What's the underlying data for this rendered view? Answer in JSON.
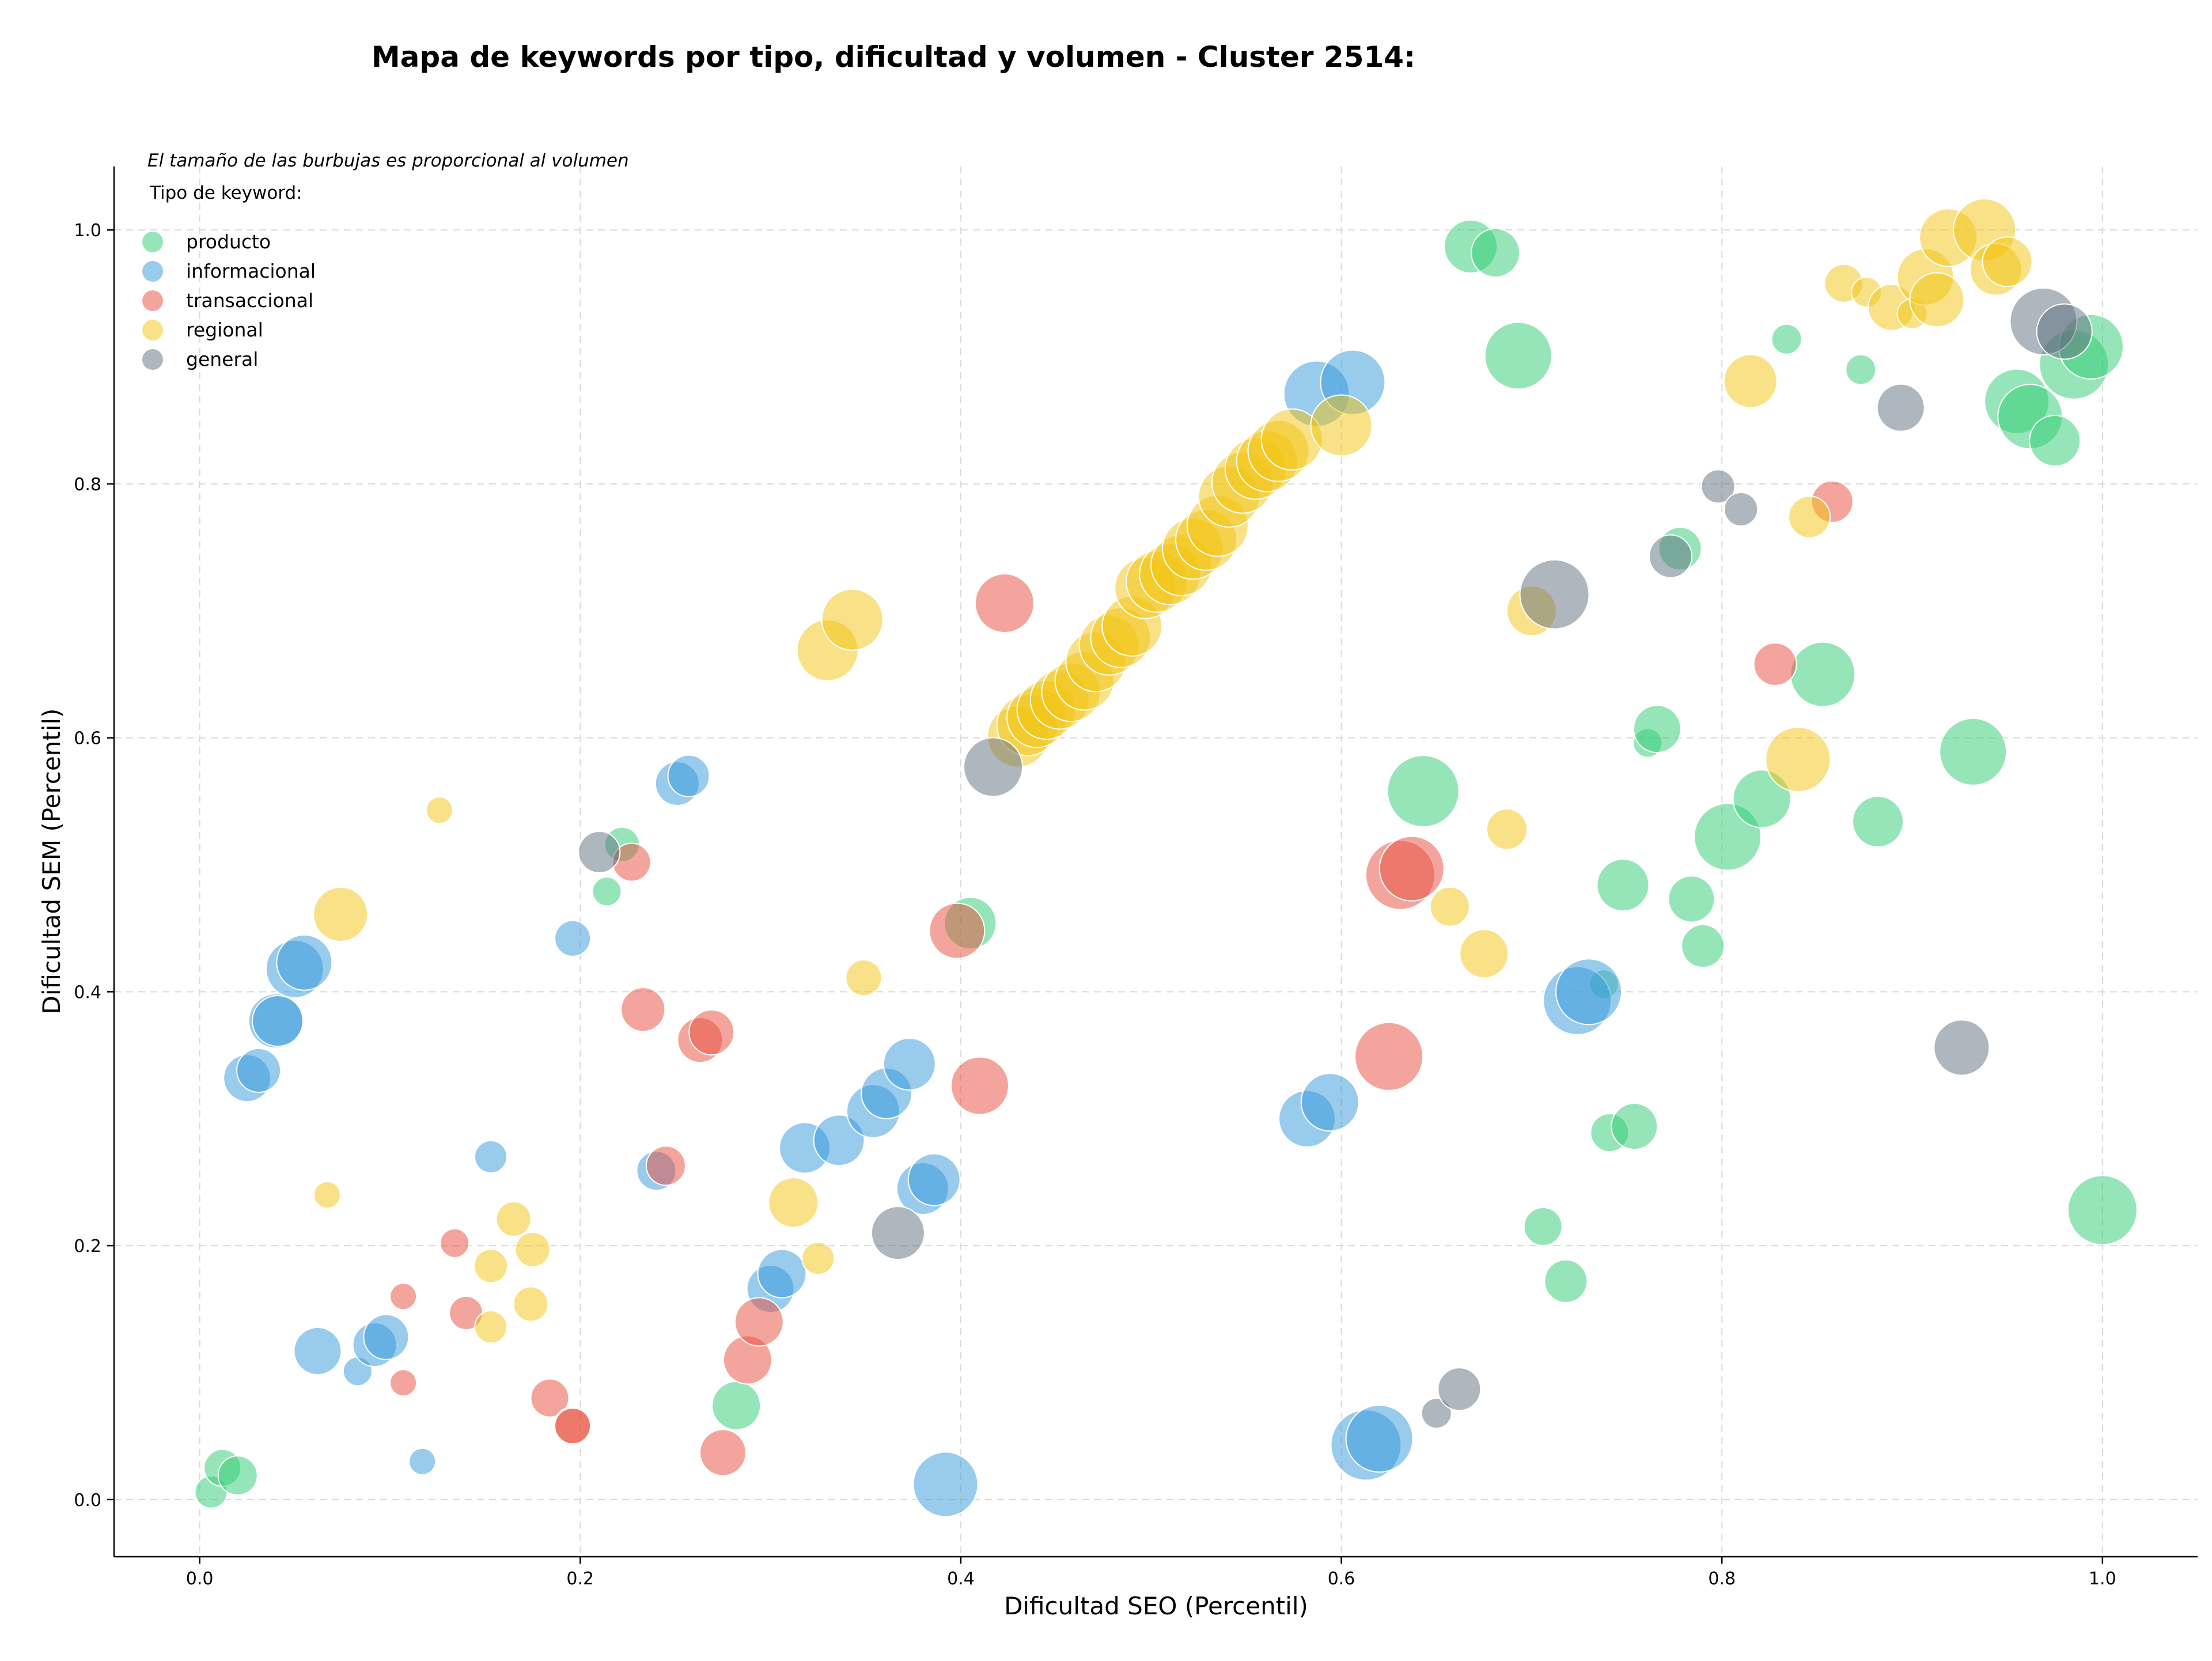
{
  "chart_data": {
    "type": "scatter",
    "title": "Mapa de keywords por tipo, dificultad y volumen - Cluster 2514:",
    "xlabel": "Dificultad SEO (Percentil)",
    "ylabel": "Dificultad SEM (Percentil)",
    "xlim": [
      -0.045,
      1.05
    ],
    "ylim": [
      -0.045,
      1.05
    ],
    "xticks": [
      "0.0",
      "0.2",
      "0.4",
      "0.6",
      "0.8",
      "1.0"
    ],
    "yticks": [
      "0.0",
      "0.2",
      "0.4",
      "0.6",
      "0.8",
      "1.0"
    ],
    "grid": true,
    "size_note": "El tamaño de las burbujas es proporcional al volumen",
    "legend_title": "Tipo de keyword:",
    "legend_position": "top-left",
    "series": [
      {
        "name": "producto",
        "color": "#2ecc71",
        "points": [
          {
            "x": 0.006,
            "y": 0.006,
            "s": 28
          },
          {
            "x": 0.012,
            "y": 0.025,
            "s": 32
          },
          {
            "x": 0.02,
            "y": 0.019,
            "s": 34
          },
          {
            "x": 0.214,
            "y": 0.479,
            "s": 25
          },
          {
            "x": 0.222,
            "y": 0.516,
            "s": 30
          },
          {
            "x": 0.282,
            "y": 0.074,
            "s": 42
          },
          {
            "x": 0.405,
            "y": 0.454,
            "s": 45
          },
          {
            "x": 0.643,
            "y": 0.558,
            "s": 62
          },
          {
            "x": 0.668,
            "y": 0.987,
            "s": 46
          },
          {
            "x": 0.681,
            "y": 0.982,
            "s": 42
          },
          {
            "x": 0.693,
            "y": 0.901,
            "s": 58
          },
          {
            "x": 0.706,
            "y": 0.215,
            "s": 33
          },
          {
            "x": 0.718,
            "y": 0.172,
            "s": 37
          },
          {
            "x": 0.738,
            "y": 0.406,
            "s": 25
          },
          {
            "x": 0.741,
            "y": 0.289,
            "s": 33
          },
          {
            "x": 0.748,
            "y": 0.484,
            "s": 45
          },
          {
            "x": 0.754,
            "y": 0.294,
            "s": 40
          },
          {
            "x": 0.761,
            "y": 0.596,
            "s": 25
          },
          {
            "x": 0.766,
            "y": 0.607,
            "s": 41
          },
          {
            "x": 0.778,
            "y": 0.749,
            "s": 37
          },
          {
            "x": 0.784,
            "y": 0.473,
            "s": 40
          },
          {
            "x": 0.79,
            "y": 0.436,
            "s": 37
          },
          {
            "x": 0.803,
            "y": 0.522,
            "s": 58
          },
          {
            "x": 0.821,
            "y": 0.552,
            "s": 50
          },
          {
            "x": 0.834,
            "y": 0.914,
            "s": 26
          },
          {
            "x": 0.853,
            "y": 0.65,
            "s": 56
          },
          {
            "x": 0.873,
            "y": 0.89,
            "s": 26
          },
          {
            "x": 0.882,
            "y": 0.534,
            "s": 44
          },
          {
            "x": 0.932,
            "y": 0.589,
            "s": 58
          },
          {
            "x": 0.955,
            "y": 0.865,
            "s": 56
          },
          {
            "x": 0.962,
            "y": 0.853,
            "s": 56
          },
          {
            "x": 0.975,
            "y": 0.834,
            "s": 44
          },
          {
            "x": 0.985,
            "y": 0.894,
            "s": 60
          },
          {
            "x": 0.994,
            "y": 0.908,
            "s": 56
          },
          {
            "x": 1.0,
            "y": 0.228,
            "s": 60
          }
        ]
      },
      {
        "name": "informacional",
        "color": "#3498db",
        "points": [
          {
            "x": 0.025,
            "y": 0.332,
            "s": 41
          },
          {
            "x": 0.031,
            "y": 0.338,
            "s": 38
          },
          {
            "x": 0.04,
            "y": 0.377,
            "s": 47
          },
          {
            "x": 0.041,
            "y": 0.377,
            "s": 44
          },
          {
            "x": 0.05,
            "y": 0.418,
            "s": 50
          },
          {
            "x": 0.055,
            "y": 0.423,
            "s": 48
          },
          {
            "x": 0.062,
            "y": 0.117,
            "s": 41
          },
          {
            "x": 0.083,
            "y": 0.101,
            "s": 25
          },
          {
            "x": 0.092,
            "y": 0.122,
            "s": 38
          },
          {
            "x": 0.098,
            "y": 0.128,
            "s": 39
          },
          {
            "x": 0.117,
            "y": 0.03,
            "s": 23
          },
          {
            "x": 0.153,
            "y": 0.27,
            "s": 28
          },
          {
            "x": 0.196,
            "y": 0.442,
            "s": 31
          },
          {
            "x": 0.24,
            "y": 0.259,
            "s": 34
          },
          {
            "x": 0.251,
            "y": 0.564,
            "s": 38
          },
          {
            "x": 0.257,
            "y": 0.57,
            "s": 36
          },
          {
            "x": 0.3,
            "y": 0.166,
            "s": 41
          },
          {
            "x": 0.306,
            "y": 0.178,
            "s": 42
          },
          {
            "x": 0.318,
            "y": 0.277,
            "s": 44
          },
          {
            "x": 0.336,
            "y": 0.283,
            "s": 44
          },
          {
            "x": 0.354,
            "y": 0.306,
            "s": 46
          },
          {
            "x": 0.361,
            "y": 0.32,
            "s": 44
          },
          {
            "x": 0.373,
            "y": 0.343,
            "s": 45
          },
          {
            "x": 0.38,
            "y": 0.245,
            "s": 45
          },
          {
            "x": 0.386,
            "y": 0.252,
            "s": 45
          },
          {
            "x": 0.392,
            "y": 0.012,
            "s": 56
          },
          {
            "x": 0.582,
            "y": 0.3,
            "s": 49
          },
          {
            "x": 0.594,
            "y": 0.313,
            "s": 50
          },
          {
            "x": 0.587,
            "y": 0.871,
            "s": 57
          },
          {
            "x": 0.606,
            "y": 0.88,
            "s": 56
          },
          {
            "x": 0.613,
            "y": 0.043,
            "s": 61
          },
          {
            "x": 0.62,
            "y": 0.048,
            "s": 58
          },
          {
            "x": 0.724,
            "y": 0.393,
            "s": 59
          },
          {
            "x": 0.73,
            "y": 0.4,
            "s": 57
          }
        ]
      },
      {
        "name": "transaccional",
        "color": "#e74c3c",
        "points": [
          {
            "x": 0.107,
            "y": 0.16,
            "s": 23
          },
          {
            "x": 0.107,
            "y": 0.092,
            "s": 23
          },
          {
            "x": 0.134,
            "y": 0.202,
            "s": 25
          },
          {
            "x": 0.14,
            "y": 0.147,
            "s": 29
          },
          {
            "x": 0.184,
            "y": 0.08,
            "s": 33
          },
          {
            "x": 0.196,
            "y": 0.058,
            "s": 33
          },
          {
            "x": 0.196,
            "y": 0.058,
            "s": 31
          },
          {
            "x": 0.227,
            "y": 0.502,
            "s": 33
          },
          {
            "x": 0.233,
            "y": 0.386,
            "s": 38
          },
          {
            "x": 0.245,
            "y": 0.263,
            "s": 34
          },
          {
            "x": 0.263,
            "y": 0.362,
            "s": 39
          },
          {
            "x": 0.269,
            "y": 0.368,
            "s": 39
          },
          {
            "x": 0.275,
            "y": 0.037,
            "s": 40
          },
          {
            "x": 0.288,
            "y": 0.11,
            "s": 42
          },
          {
            "x": 0.294,
            "y": 0.14,
            "s": 42
          },
          {
            "x": 0.398,
            "y": 0.448,
            "s": 48
          },
          {
            "x": 0.41,
            "y": 0.326,
            "s": 50
          },
          {
            "x": 0.423,
            "y": 0.706,
            "s": 51
          },
          {
            "x": 0.625,
            "y": 0.349,
            "s": 59
          },
          {
            "x": 0.631,
            "y": 0.492,
            "s": 60
          },
          {
            "x": 0.637,
            "y": 0.497,
            "s": 56
          },
          {
            "x": 0.828,
            "y": 0.658,
            "s": 37
          },
          {
            "x": 0.858,
            "y": 0.786,
            "s": 36
          }
        ]
      },
      {
        "name": "regional",
        "color": "#f1c40f",
        "points": [
          {
            "x": 0.067,
            "y": 0.24,
            "s": 23
          },
          {
            "x": 0.074,
            "y": 0.461,
            "s": 47
          },
          {
            "x": 0.126,
            "y": 0.543,
            "s": 23
          },
          {
            "x": 0.153,
            "y": 0.136,
            "s": 28
          },
          {
            "x": 0.153,
            "y": 0.184,
            "s": 29
          },
          {
            "x": 0.165,
            "y": 0.221,
            "s": 30
          },
          {
            "x": 0.174,
            "y": 0.154,
            "s": 30
          },
          {
            "x": 0.175,
            "y": 0.197,
            "s": 30
          },
          {
            "x": 0.312,
            "y": 0.234,
            "s": 43
          },
          {
            "x": 0.325,
            "y": 0.19,
            "s": 28
          },
          {
            "x": 0.33,
            "y": 0.669,
            "s": 53
          },
          {
            "x": 0.343,
            "y": 0.693,
            "s": 53
          },
          {
            "x": 0.349,
            "y": 0.411,
            "s": 31
          },
          {
            "x": 0.43,
            "y": 0.601,
            "s": 53
          },
          {
            "x": 0.435,
            "y": 0.61,
            "s": 53
          },
          {
            "x": 0.44,
            "y": 0.616,
            "s": 52
          },
          {
            "x": 0.445,
            "y": 0.622,
            "s": 51
          },
          {
            "x": 0.452,
            "y": 0.63,
            "s": 51
          },
          {
            "x": 0.458,
            "y": 0.636,
            "s": 51
          },
          {
            "x": 0.465,
            "y": 0.645,
            "s": 51
          },
          {
            "x": 0.471,
            "y": 0.66,
            "s": 52
          },
          {
            "x": 0.478,
            "y": 0.673,
            "s": 52
          },
          {
            "x": 0.484,
            "y": 0.679,
            "s": 52
          },
          {
            "x": 0.49,
            "y": 0.688,
            "s": 52
          },
          {
            "x": 0.497,
            "y": 0.718,
            "s": 53
          },
          {
            "x": 0.503,
            "y": 0.723,
            "s": 53
          },
          {
            "x": 0.51,
            "y": 0.729,
            "s": 53
          },
          {
            "x": 0.516,
            "y": 0.736,
            "s": 53
          },
          {
            "x": 0.522,
            "y": 0.749,
            "s": 53
          },
          {
            "x": 0.529,
            "y": 0.756,
            "s": 53
          },
          {
            "x": 0.535,
            "y": 0.767,
            "s": 53
          },
          {
            "x": 0.541,
            "y": 0.79,
            "s": 53
          },
          {
            "x": 0.548,
            "y": 0.801,
            "s": 53
          },
          {
            "x": 0.555,
            "y": 0.812,
            "s": 53
          },
          {
            "x": 0.561,
            "y": 0.818,
            "s": 53
          },
          {
            "x": 0.567,
            "y": 0.826,
            "s": 53
          },
          {
            "x": 0.574,
            "y": 0.835,
            "s": 53
          },
          {
            "x": 0.6,
            "y": 0.846,
            "s": 53
          },
          {
            "x": 0.657,
            "y": 0.467,
            "s": 34
          },
          {
            "x": 0.675,
            "y": 0.43,
            "s": 42
          },
          {
            "x": 0.687,
            "y": 0.528,
            "s": 35
          },
          {
            "x": 0.7,
            "y": 0.7,
            "s": 43
          },
          {
            "x": 0.815,
            "y": 0.881,
            "s": 46
          },
          {
            "x": 0.84,
            "y": 0.583,
            "s": 56
          },
          {
            "x": 0.846,
            "y": 0.774,
            "s": 36
          },
          {
            "x": 0.864,
            "y": 0.958,
            "s": 33
          },
          {
            "x": 0.876,
            "y": 0.951,
            "s": 26
          },
          {
            "x": 0.889,
            "y": 0.939,
            "s": 40
          },
          {
            "x": 0.9,
            "y": 0.934,
            "s": 26
          },
          {
            "x": 0.907,
            "y": 0.963,
            "s": 49
          },
          {
            "x": 0.913,
            "y": 0.945,
            "s": 47
          },
          {
            "x": 0.919,
            "y": 0.994,
            "s": 50
          },
          {
            "x": 0.938,
            "y": 1.0,
            "s": 54
          },
          {
            "x": 0.944,
            "y": 0.969,
            "s": 45
          },
          {
            "x": 0.95,
            "y": 0.975,
            "s": 43
          }
        ]
      },
      {
        "name": "general",
        "color": "#5d6d7e",
        "points": [
          {
            "x": 0.21,
            "y": 0.51,
            "s": 36
          },
          {
            "x": 0.367,
            "y": 0.21,
            "s": 46
          },
          {
            "x": 0.417,
            "y": 0.577,
            "s": 51
          },
          {
            "x": 0.65,
            "y": 0.068,
            "s": 26
          },
          {
            "x": 0.662,
            "y": 0.087,
            "s": 37
          },
          {
            "x": 0.712,
            "y": 0.713,
            "s": 60
          },
          {
            "x": 0.773,
            "y": 0.743,
            "s": 37
          },
          {
            "x": 0.798,
            "y": 0.798,
            "s": 29
          },
          {
            "x": 0.81,
            "y": 0.78,
            "s": 29
          },
          {
            "x": 0.894,
            "y": 0.86,
            "s": 41
          },
          {
            "x": 0.926,
            "y": 0.356,
            "s": 48
          },
          {
            "x": 0.969,
            "y": 0.928,
            "s": 58
          },
          {
            "x": 0.98,
            "y": 0.92,
            "s": 48
          }
        ]
      }
    ]
  }
}
